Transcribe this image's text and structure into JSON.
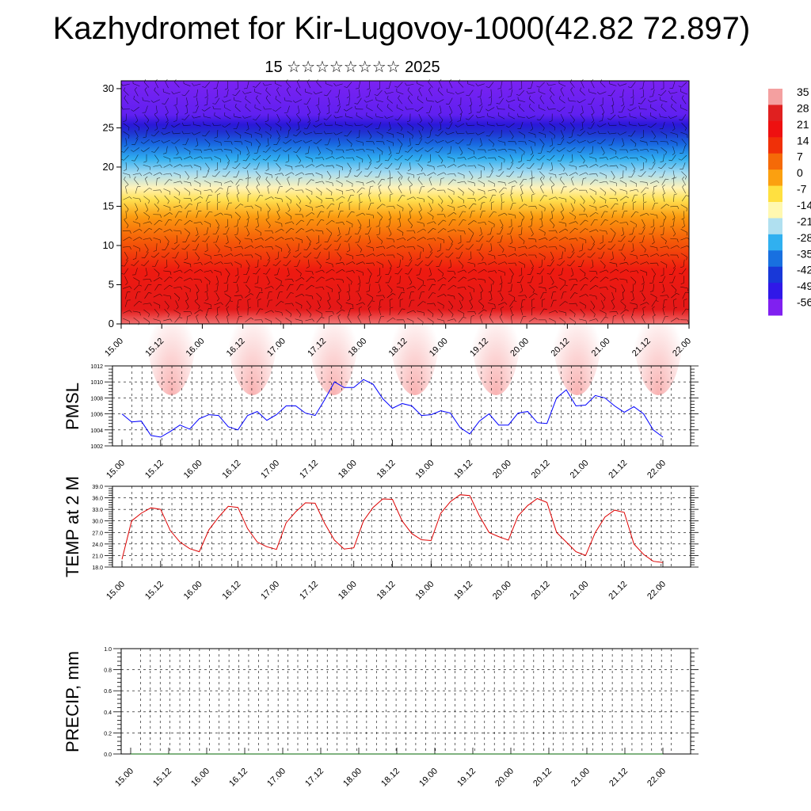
{
  "header": {
    "title": "Kazhydromet for Kir-Lugovoy-1000(42.82 72.897)",
    "subtitle": "15 ☆☆☆☆☆☆☆☆ 2025"
  },
  "colors": {
    "pmsl_line": "#0000ff",
    "temp_line": "#dd0000",
    "precip_line": "#006400"
  },
  "chart_data": [
    {
      "type": "heatmap",
      "name": "vertical-profile",
      "x_tick_labels": [
        "15.00",
        "15.12",
        "16.00",
        "16.12",
        "17.00",
        "17.12",
        "18.00",
        "18.12",
        "19.00",
        "19.12",
        "20.00",
        "20.12",
        "21.00",
        "21.12",
        "22.00"
      ],
      "y_ticks": [
        0,
        5,
        10,
        15,
        20,
        25,
        30
      ],
      "ylim": [
        0,
        31
      ],
      "colorbar_labels": [
        "35",
        "28",
        "21",
        "14",
        "7",
        "0",
        "-7",
        "-14",
        "-21",
        "-28",
        "-35",
        "-42",
        "-49",
        "-56"
      ],
      "colorbar_colors": [
        "#f4a0a0",
        "#e02020",
        "#ee1010",
        "#f03008",
        "#f56a08",
        "#fba010",
        "#ffe040",
        "#fff8b0",
        "#b0e0f0",
        "#30b0f0",
        "#1870e0",
        "#1838d8",
        "#3018e8",
        "#8020f0"
      ],
      "grid": false,
      "legend": "right"
    },
    {
      "type": "line",
      "name": "pmsl",
      "ylabel": "PMSL",
      "y_ticks": [
        "1002",
        "1004",
        "1006",
        "1008",
        "1010",
        "1012"
      ],
      "ylim": [
        1002,
        1012
      ],
      "x_tick_labels": [
        "15.00",
        "15.12",
        "16.00",
        "16.12",
        "17.00",
        "17.12",
        "18.00",
        "18.12",
        "19.00",
        "19.12",
        "20.00",
        "20.12",
        "21.00",
        "21.12",
        "22.00"
      ],
      "series": [
        {
          "values": [
            1006.0,
            1005.0,
            1005.1,
            1003.3,
            1003.1,
            1003.8,
            1004.6,
            1004.1,
            1005.4,
            1005.9,
            1005.8,
            1004.4,
            1004.0,
            1005.8,
            1006.3,
            1005.2,
            1005.9,
            1007.0,
            1007.0,
            1006.1,
            1005.8,
            1007.8,
            1010.0,
            1009.3,
            1009.3,
            1010.3,
            1009.7,
            1007.9,
            1006.7,
            1007.3,
            1007.0,
            1005.8,
            1005.9,
            1006.4,
            1006.1,
            1004.3,
            1003.5,
            1005.1,
            1006.0,
            1004.6,
            1004.6,
            1006.1,
            1006.3,
            1004.9,
            1004.8,
            1008.0,
            1009.0,
            1007.0,
            1007.1,
            1008.3,
            1008.0,
            1007.0,
            1006.2,
            1006.9,
            1006.0,
            1004.0,
            1003.1
          ]
        }
      ],
      "grid": true
    },
    {
      "type": "line",
      "name": "temp-2m",
      "ylabel": "TEMP at 2 M",
      "y_ticks": [
        "18.0",
        "21.0",
        "24.0",
        "27.0",
        "30.0",
        "33.0",
        "36.0",
        "39.0"
      ],
      "ylim": [
        18,
        39
      ],
      "x_tick_labels": [
        "15.00",
        "15.12",
        "16.00",
        "16.12",
        "17.00",
        "17.12",
        "18.00",
        "18.12",
        "19.00",
        "19.12",
        "20.00",
        "20.12",
        "21.00",
        "21.12",
        "22.00"
      ],
      "series": [
        {
          "values": [
            20.0,
            30.0,
            32.0,
            33.4,
            33.0,
            27.5,
            24.5,
            22.8,
            22.0,
            27.7,
            31.0,
            33.8,
            33.5,
            28.0,
            24.5,
            23.3,
            22.6,
            29.5,
            32.4,
            34.7,
            34.6,
            29.3,
            25.0,
            22.7,
            23.0,
            30.0,
            33.5,
            35.7,
            35.6,
            30.0,
            26.7,
            25.1,
            24.9,
            32.0,
            35.0,
            36.8,
            36.6,
            31.3,
            27.0,
            25.9,
            25.0,
            31.3,
            34.0,
            35.8,
            34.8,
            27.0,
            24.5,
            22.0,
            21.0,
            27.0,
            31.0,
            32.8,
            32.2,
            24.0,
            21.3,
            19.5,
            19.2
          ]
        }
      ],
      "grid": true
    },
    {
      "type": "line",
      "name": "precip",
      "ylabel": "PRECIP, mm",
      "y_ticks": [
        "0.0",
        "0.2",
        "0.4",
        "0.6",
        "0.8",
        "1.0"
      ],
      "ylim": [
        0,
        1
      ],
      "x_tick_labels": [
        "15.00",
        "15.12",
        "16.00",
        "16.12",
        "17.00",
        "17.12",
        "18.00",
        "18.12",
        "19.00",
        "19.12",
        "20.00",
        "20.12",
        "21.00",
        "21.12",
        "22.00"
      ],
      "series": [
        {
          "values": [
            0,
            0,
            0,
            0,
            0,
            0,
            0,
            0,
            0,
            0,
            0,
            0,
            0,
            0,
            0,
            0,
            0,
            0,
            0,
            0,
            0,
            0,
            0,
            0,
            0,
            0,
            0,
            0,
            0,
            0,
            0,
            0,
            0,
            0,
            0,
            0,
            0,
            0,
            0,
            0,
            0,
            0,
            0,
            0,
            0,
            0,
            0,
            0,
            0,
            0,
            0,
            0,
            0,
            0,
            0,
            0,
            0
          ]
        }
      ],
      "grid": true
    }
  ]
}
